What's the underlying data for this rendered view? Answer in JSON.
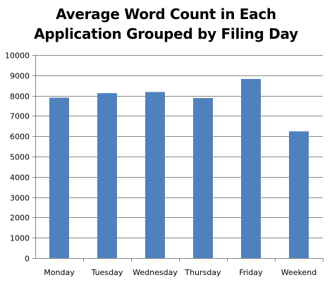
{
  "chart_data": {
    "type": "bar",
    "title_lines": [
      "Average Word Count in Each",
      "Application Grouped by Filing Day"
    ],
    "categories": [
      "Monday",
      "Tuesday",
      "Wednesday",
      "Thursday",
      "Friday",
      "Weekend"
    ],
    "values": [
      7900,
      8120,
      8180,
      7880,
      8820,
      6240
    ],
    "xlabel": "",
    "ylabel": "",
    "ylim": [
      0,
      10000
    ],
    "y_ticks": [
      "0",
      "1000",
      "2000",
      "3000",
      "4000",
      "5000",
      "6000",
      "7000",
      "8000",
      "9000",
      "10000"
    ],
    "grid": true,
    "legend": "none",
    "bar_color": "#4F81BD",
    "grid_color": "#868686"
  }
}
